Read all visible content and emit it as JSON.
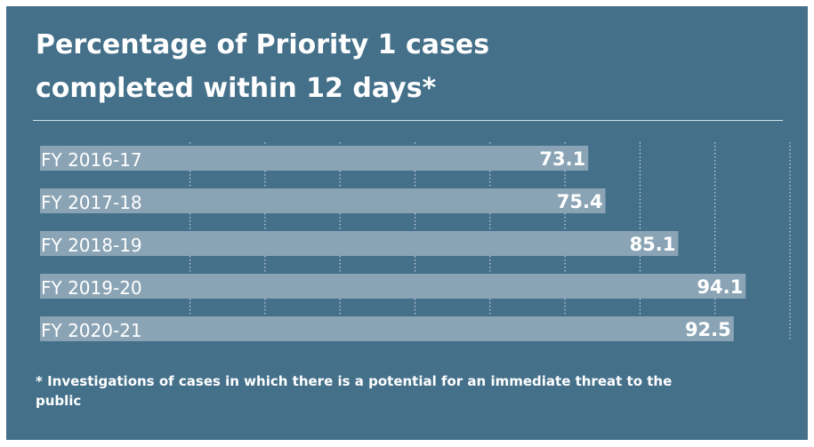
{
  "chart_data": {
    "type": "bar",
    "orientation": "horizontal",
    "title_lines": [
      "Percentage of Priority 1 cases",
      "completed within 12 days*"
    ],
    "categories": [
      "FY 2016-17",
      "FY 2017-18",
      "FY 2018-19",
      "FY 2019-20",
      "FY 2020-21"
    ],
    "values": [
      73.1,
      75.4,
      85.1,
      94.1,
      92.5
    ],
    "value_labels": [
      "73.1",
      "75.4",
      "85.1",
      "94.1",
      "92.5"
    ],
    "xlim": [
      0,
      100
    ],
    "grid": true,
    "footnote": "* Investigations of cases in which there is a potential for an immediate threat to the public"
  },
  "colors": {
    "background": "#44708a",
    "bar": "#8aa4b5",
    "text": "#ffffff",
    "gridline": "#dde7ed"
  }
}
